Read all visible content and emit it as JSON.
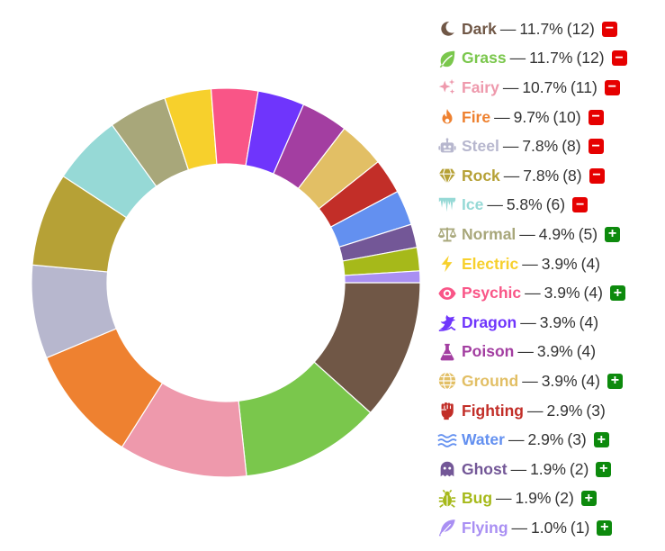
{
  "chart_data": {
    "type": "pie",
    "variant": "donut",
    "series": [
      {
        "name": "Dark",
        "percent": "11.7%",
        "count": 12,
        "color": "#705746",
        "icon": "moon-icon",
        "badge": "minus"
      },
      {
        "name": "Grass",
        "percent": "11.7%",
        "count": 12,
        "color": "#7AC74C",
        "icon": "leaf-icon",
        "badge": "minus"
      },
      {
        "name": "Fairy",
        "percent": "10.7%",
        "count": 11,
        "color": "#EE99AC",
        "icon": "sparkles-icon",
        "badge": "minus"
      },
      {
        "name": "Fire",
        "percent": "9.7%",
        "count": 10,
        "color": "#EE8130",
        "icon": "flame-icon",
        "badge": "minus"
      },
      {
        "name": "Steel",
        "percent": "7.8%",
        "count": 8,
        "color": "#B7B7CE",
        "icon": "robot-icon",
        "badge": "minus"
      },
      {
        "name": "Rock",
        "percent": "7.8%",
        "count": 8,
        "color": "#B6A136",
        "icon": "gem-icon",
        "badge": "minus"
      },
      {
        "name": "Ice",
        "percent": "5.8%",
        "count": 6,
        "color": "#96D9D6",
        "icon": "icicles-icon",
        "badge": "minus"
      },
      {
        "name": "Normal",
        "percent": "4.9%",
        "count": 5,
        "color": "#A8A77A",
        "icon": "scales-icon",
        "badge": "plus"
      },
      {
        "name": "Electric",
        "percent": "3.9%",
        "count": 4,
        "color": "#F7D02C",
        "icon": "lightning-icon",
        "badge": ""
      },
      {
        "name": "Psychic",
        "percent": "3.9%",
        "count": 4,
        "color": "#F95587",
        "icon": "eye-icon",
        "badge": "plus"
      },
      {
        "name": "Dragon",
        "percent": "3.9%",
        "count": 4,
        "color": "#6F35FC",
        "icon": "dragon-icon",
        "badge": ""
      },
      {
        "name": "Poison",
        "percent": "3.9%",
        "count": 4,
        "color": "#A33EA1",
        "icon": "flask-icon",
        "badge": ""
      },
      {
        "name": "Ground",
        "percent": "3.9%",
        "count": 4,
        "color": "#E2BF65",
        "icon": "globe-icon",
        "badge": "plus"
      },
      {
        "name": "Fighting",
        "percent": "2.9%",
        "count": 3,
        "color": "#C22E28",
        "icon": "fist-icon",
        "badge": ""
      },
      {
        "name": "Water",
        "percent": "2.9%",
        "count": 3,
        "color": "#6390F0",
        "icon": "waves-icon",
        "badge": "plus"
      },
      {
        "name": "Ghost",
        "percent": "1.9%",
        "count": 2,
        "color": "#735797",
        "icon": "ghost-icon",
        "badge": "plus"
      },
      {
        "name": "Bug",
        "percent": "1.9%",
        "count": 2,
        "color": "#A6B91A",
        "icon": "bug-icon",
        "badge": "plus"
      },
      {
        "name": "Flying",
        "percent": "1.0%",
        "count": 1,
        "color": "#A98FF3",
        "icon": "feather-icon",
        "badge": "plus"
      }
    ],
    "legend": "right",
    "start_angle_deg": 90,
    "direction": "clockwise"
  },
  "legend": {
    "separator": "—",
    "minus_glyph": "−",
    "plus_glyph": "+"
  }
}
